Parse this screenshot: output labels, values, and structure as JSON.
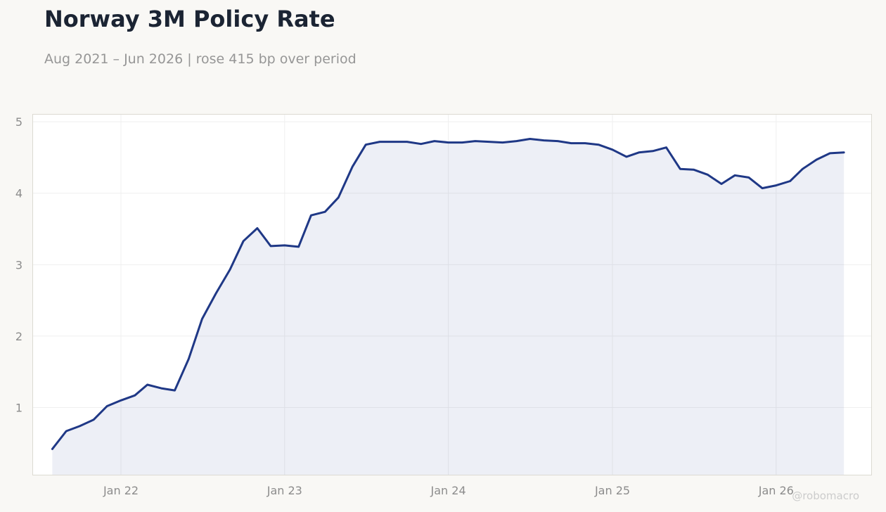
{
  "chart_data": {
    "type": "area",
    "title": "Norway 3M Policy Rate",
    "subtitle": "Aug 2021 – Jun 2026 | rose 415 bp over period",
    "xlabel": "",
    "ylabel": "",
    "watermark": "@robomacro",
    "x_ticks": [
      {
        "label": "Jan 22",
        "date": "2022-01"
      },
      {
        "label": "Jan 23",
        "date": "2023-01"
      },
      {
        "label": "Jan 24",
        "date": "2024-01"
      },
      {
        "label": "Jan 25",
        "date": "2025-01"
      },
      {
        "label": "Jan 26",
        "date": "2026-01"
      }
    ],
    "y_ticks": [
      1,
      2,
      3,
      4,
      5
    ],
    "xlim": [
      "2021-06-19",
      "2026-08-01"
    ],
    "ylim": [
      0.06,
      5.1
    ],
    "grid": true,
    "colors": {
      "line": "#1f3886",
      "fill": "#1f3886",
      "background": "#f9f8f5",
      "plot_bg": "#ffffff"
    },
    "series": [
      {
        "x": [
          "2021-08",
          "2021-09",
          "2021-10",
          "2021-11",
          "2021-12",
          "2022-01",
          "2022-02",
          "2022-03",
          "2022-04",
          "2022-05",
          "2022-06",
          "2022-07",
          "2022-08",
          "2022-09",
          "2022-10",
          "2022-11",
          "2022-12",
          "2023-01",
          "2023-02",
          "2023-03",
          "2023-04",
          "2023-05",
          "2023-06",
          "2023-07",
          "2023-08",
          "2023-09",
          "2023-10",
          "2023-11",
          "2023-12",
          "2024-01",
          "2024-02",
          "2024-03",
          "2024-04",
          "2024-05",
          "2024-06",
          "2024-07",
          "2024-08",
          "2024-09",
          "2024-10",
          "2024-11",
          "2024-12",
          "2025-01",
          "2025-02",
          "2025-03",
          "2025-04",
          "2025-05",
          "2025-06",
          "2025-07",
          "2025-08",
          "2025-09",
          "2025-10",
          "2025-11",
          "2025-12",
          "2026-01",
          "2026-02",
          "2026-03",
          "2026-04",
          "2026-05",
          "2026-06"
        ],
        "values": [
          0.42,
          0.67,
          0.74,
          0.83,
          1.02,
          1.1,
          1.17,
          1.32,
          1.27,
          1.24,
          1.68,
          2.24,
          2.6,
          2.93,
          3.33,
          3.51,
          3.26,
          3.27,
          3.25,
          3.69,
          3.74,
          3.94,
          4.37,
          4.68,
          4.72,
          4.72,
          4.72,
          4.69,
          4.73,
          4.71,
          4.71,
          4.73,
          4.72,
          4.71,
          4.73,
          4.76,
          4.74,
          4.73,
          4.7,
          4.7,
          4.68,
          4.61,
          4.51,
          4.57,
          4.59,
          4.64,
          4.34,
          4.33,
          4.26,
          4.13,
          4.25,
          4.22,
          4.07,
          4.11,
          4.17,
          4.34,
          4.47,
          4.56,
          4.57
        ]
      }
    ]
  }
}
